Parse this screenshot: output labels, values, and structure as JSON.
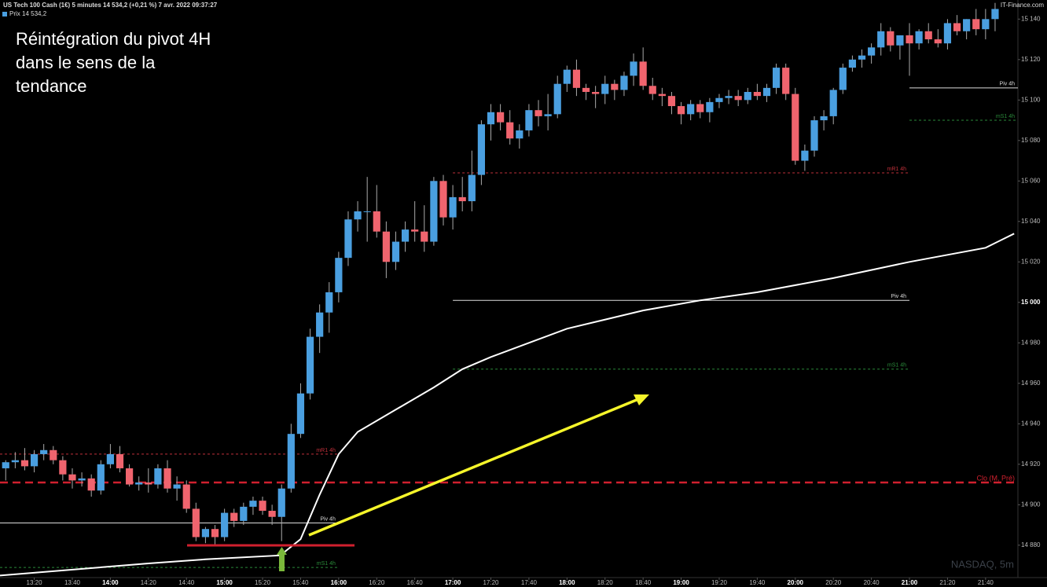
{
  "chart_data": {
    "type": "candlestick",
    "title": "US Tech 100 Cash (1€) 5 minutes 14 534,2 (+0,21 %) 7 avr. 2022 09:37:27",
    "source": "IT-Finance.com",
    "watermark": "NASDAQ, 5m",
    "annotation": [
      "Réintégration du pivot 4H",
      "dans le sens de la",
      "tendance"
    ],
    "series": [
      {
        "name": "Prix 14 534,2",
        "up_color": "#4a9fe0",
        "down_color": "#f0646e",
        "x": [
          785,
          790,
          795,
          800,
          805,
          810,
          815,
          820,
          825,
          830,
          835,
          840,
          845,
          850,
          855,
          860,
          865,
          870,
          875,
          880,
          885,
          890,
          895,
          900,
          905,
          910,
          915,
          920,
          925,
          930,
          935,
          940,
          945,
          950,
          955,
          960,
          965,
          970,
          975,
          980,
          985,
          990,
          995,
          1000,
          1005,
          1010,
          1015,
          1020,
          1025,
          1030,
          1035,
          1040,
          1045,
          1050,
          1055,
          1060,
          1065,
          1070,
          1075,
          1080,
          1085,
          1090,
          1095,
          1100,
          1105,
          1110,
          1115,
          1120,
          1125,
          1130,
          1135,
          1140,
          1145,
          1150,
          1155,
          1160,
          1165,
          1170,
          1175,
          1180,
          1185,
          1190,
          1195,
          1200,
          1205,
          1210,
          1215,
          1220,
          1225,
          1230,
          1235,
          1240,
          1245,
          1250,
          1255,
          1260,
          1265,
          1270,
          1275,
          1280,
          1285,
          1290,
          1295,
          1300,
          1305
        ],
        "open": [
          14918,
          14921,
          14922,
          14919,
          14925,
          14927,
          14922,
          14915,
          14912,
          14913,
          14907,
          14920,
          14925,
          14918,
          14910,
          14911,
          14910,
          14918,
          14908,
          14910,
          14898,
          14884,
          14888,
          14884,
          14896,
          14892,
          14899,
          14902,
          14897,
          14894,
          14908,
          14935,
          14955,
          14983,
          14995,
          15005,
          15022,
          15041,
          15045,
          15045,
          15035,
          15020,
          15030,
          15036,
          15035,
          15030,
          15060,
          15042,
          15052,
          15050,
          15063,
          15088,
          15094,
          15089,
          15081,
          15085,
          15095,
          15092,
          15093,
          15108,
          15115,
          15106,
          15104,
          15103,
          15108,
          15105,
          15112,
          15119,
          15107,
          15103,
          15102,
          15097,
          15093,
          15098,
          15094,
          15099,
          15101,
          15102,
          15100,
          15104,
          15102,
          15106,
          15116,
          15103,
          15070,
          15075,
          15090,
          15092,
          15105,
          15116,
          15120,
          15122,
          15126,
          15134,
          15127,
          15132,
          15128,
          15134,
          15130,
          15128,
          15138,
          15134,
          15140,
          15135,
          15140
        ],
        "high": [
          14922,
          14926,
          14928,
          14927,
          14930,
          14929,
          14924,
          14918,
          14916,
          14915,
          14922,
          14930,
          14929,
          14920,
          14914,
          14918,
          14920,
          14922,
          14914,
          14912,
          14901,
          14889,
          14890,
          14898,
          14898,
          14901,
          14904,
          14904,
          14900,
          14910,
          14940,
          14960,
          14987,
          14999,
          15010,
          15025,
          15045,
          15050,
          15062,
          15058,
          15040,
          15035,
          15040,
          15050,
          15048,
          15062,
          15063,
          15058,
          15062,
          15075,
          15090,
          15098,
          15098,
          15095,
          15088,
          15098,
          15100,
          15103,
          15112,
          15117,
          15120,
          15108,
          15107,
          15112,
          15110,
          15114,
          15123,
          15126,
          15111,
          15106,
          15104,
          15099,
          15100,
          15100,
          15101,
          15103,
          15105,
          15105,
          15106,
          15108,
          15108,
          15118,
          15118,
          15106,
          15078,
          15092,
          15095,
          15106,
          15118,
          15122,
          15125,
          15128,
          15138,
          15136,
          15132,
          15138,
          15135,
          15138,
          15135,
          15140,
          15142,
          15140,
          15145,
          15145,
          15148
        ],
        "low": [
          14912,
          14918,
          14917,
          14916,
          14922,
          14920,
          14912,
          14908,
          14909,
          14904,
          14905,
          14918,
          14916,
          14909,
          14907,
          14906,
          14908,
          14906,
          14902,
          14896,
          14882,
          14881,
          14880,
          14882,
          14889,
          14890,
          14895,
          14895,
          14890,
          14882,
          14906,
          14933,
          14952,
          14975,
          14985,
          15000,
          15018,
          15035,
          15030,
          15032,
          15012,
          15016,
          15025,
          15030,
          15025,
          15028,
          15038,
          15036,
          15045,
          15045,
          15058,
          15080,
          15085,
          15078,
          15076,
          15082,
          15087,
          15085,
          15091,
          15104,
          15102,
          15100,
          15096,
          15098,
          15100,
          15102,
          15107,
          15105,
          15100,
          15097,
          15093,
          15088,
          15090,
          15091,
          15089,
          15096,
          15098,
          15097,
          15098,
          15100,
          15099,
          15103,
          15100,
          15068,
          15065,
          15072,
          15085,
          15088,
          15103,
          15114,
          15116,
          15118,
          15122,
          15124,
          15120,
          15112,
          15125,
          15128,
          15126,
          15125,
          15132,
          15130,
          15132,
          15130,
          15134
        ],
        "close": [
          14921,
          14922,
          14919,
          14925,
          14927,
          14922,
          14915,
          14912,
          14913,
          14907,
          14920,
          14925,
          14918,
          14910,
          14911,
          14910,
          14918,
          14908,
          14910,
          14898,
          14884,
          14888,
          14884,
          14896,
          14892,
          14899,
          14902,
          14897,
          14894,
          14908,
          14935,
          14955,
          14983,
          14995,
          15005,
          15022,
          15041,
          15045,
          15045,
          15035,
          15020,
          15030,
          15036,
          15035,
          15030,
          15060,
          15042,
          15052,
          15050,
          15063,
          15088,
          15094,
          15089,
          15081,
          15085,
          15095,
          15092,
          15093,
          15108,
          15115,
          15106,
          15104,
          15103,
          15108,
          15105,
          15112,
          15119,
          15107,
          15103,
          15102,
          15097,
          15093,
          15098,
          15094,
          15099,
          15101,
          15102,
          15100,
          15104,
          15102,
          15106,
          15116,
          15103,
          15070,
          15075,
          15090,
          15092,
          15105,
          15116,
          15120,
          15122,
          15126,
          15134,
          15127,
          15132,
          15128,
          15134,
          15130,
          15128,
          15138,
          15134,
          15140,
          15135,
          15140,
          15145
        ]
      }
    ],
    "moving_average": {
      "color": "#ffffff",
      "x": [
        782,
        860,
        890,
        930,
        932,
        940,
        950,
        960,
        970,
        990,
        1010,
        1025,
        1040,
        1060,
        1080,
        1120,
        1150,
        1180,
        1220,
        1260,
        1300,
        1315
      ],
      "values": [
        14865,
        14871,
        14873,
        14875,
        14877,
        14883,
        14905,
        14925,
        14936,
        14947,
        14958,
        14967,
        14973,
        14980,
        14987,
        14996,
        15001,
        15005,
        15012,
        15020,
        15027,
        15034
      ]
    },
    "levels": [
      {
        "label": "mR1 4h",
        "value": 14925,
        "from": 782,
        "to": 960,
        "color": "#c0303a",
        "dash": true
      },
      {
        "label": "Piv 4h",
        "value": 14891,
        "from": 782,
        "to": 960,
        "color": "#dddddd",
        "dash": false
      },
      {
        "label": "mS1 4h",
        "value": 14869,
        "from": 782,
        "to": 960,
        "color": "#2a8a3a",
        "dash": true
      },
      {
        "label": "mR1 4h",
        "value": 15064,
        "from": 1020,
        "to": 1260,
        "color": "#c0303a",
        "dash": true
      },
      {
        "label": "Piv 4h",
        "value": 15001,
        "from": 1020,
        "to": 1260,
        "color": "#dddddd",
        "dash": false
      },
      {
        "label": "mS1 4h",
        "value": 14967,
        "from": 1020,
        "to": 1260,
        "color": "#2a8a3a",
        "dash": true
      },
      {
        "label": "Piv 4h",
        "value": 15106,
        "from": 1260,
        "to": 1317,
        "color": "#dddddd",
        "dash": false
      },
      {
        "label": "mS1 4h",
        "value": 15090,
        "from": 1260,
        "to": 1317,
        "color": "#2a8a3a",
        "dash": true
      },
      {
        "label": "Clo (M, Pré)",
        "value": 14911,
        "from": 782,
        "to": 1317,
        "color": "#d0202e",
        "dash": true,
        "thick": true
      }
    ],
    "xlim": [
      782,
      1317
    ],
    "ylim": [
      14864,
      15144
    ],
    "xticks": [
      {
        "value": 800,
        "label": "13:20"
      },
      {
        "value": 820,
        "label": "13:40"
      },
      {
        "value": 840,
        "label": "14:00"
      },
      {
        "value": 860,
        "label": "14:20"
      },
      {
        "value": 880,
        "label": "14:40"
      },
      {
        "value": 900,
        "label": "15:00"
      },
      {
        "value": 920,
        "label": "15:20"
      },
      {
        "value": 940,
        "label": "15:40"
      },
      {
        "value": 960,
        "label": "16:00"
      },
      {
        "value": 980,
        "label": "16:20"
      },
      {
        "value": 1000,
        "label": "16:40"
      },
      {
        "value": 1020,
        "label": "17:00"
      },
      {
        "value": 1040,
        "label": "17:20"
      },
      {
        "value": 1060,
        "label": "17:40"
      },
      {
        "value": 1080,
        "label": "18:00"
      },
      {
        "value": 1100,
        "label": "18:20"
      },
      {
        "value": 1120,
        "label": "18:40"
      },
      {
        "value": 1140,
        "label": "19:00"
      },
      {
        "value": 1160,
        "label": "19:20"
      },
      {
        "value": 1180,
        "label": "19:40"
      },
      {
        "value": 1200,
        "label": "20:00"
      },
      {
        "value": 1220,
        "label": "20:20"
      },
      {
        "value": 1240,
        "label": "20:40"
      },
      {
        "value": 1260,
        "label": "21:00"
      },
      {
        "value": 1280,
        "label": "21:20"
      },
      {
        "value": 1300,
        "label": "21:40"
      }
    ],
    "yticks": [
      {
        "value": 14880,
        "label": "14 880"
      },
      {
        "value": 14900,
        "label": "14 900"
      },
      {
        "value": 14920,
        "label": "14 920"
      },
      {
        "value": 14940,
        "label": "14 940"
      },
      {
        "value": 14960,
        "label": "14 960"
      },
      {
        "value": 14980,
        "label": "14 980"
      },
      {
        "value": 15000,
        "label": "15 000"
      },
      {
        "value": 15020,
        "label": "15 020"
      },
      {
        "value": 15040,
        "label": "15 040"
      },
      {
        "value": 15060,
        "label": "15 060"
      },
      {
        "value": 15080,
        "label": "15 080"
      },
      {
        "value": 15100,
        "label": "15 100"
      },
      {
        "value": 15120,
        "label": "15 120"
      },
      {
        "value": 15140,
        "label": "15 140"
      }
    ]
  }
}
